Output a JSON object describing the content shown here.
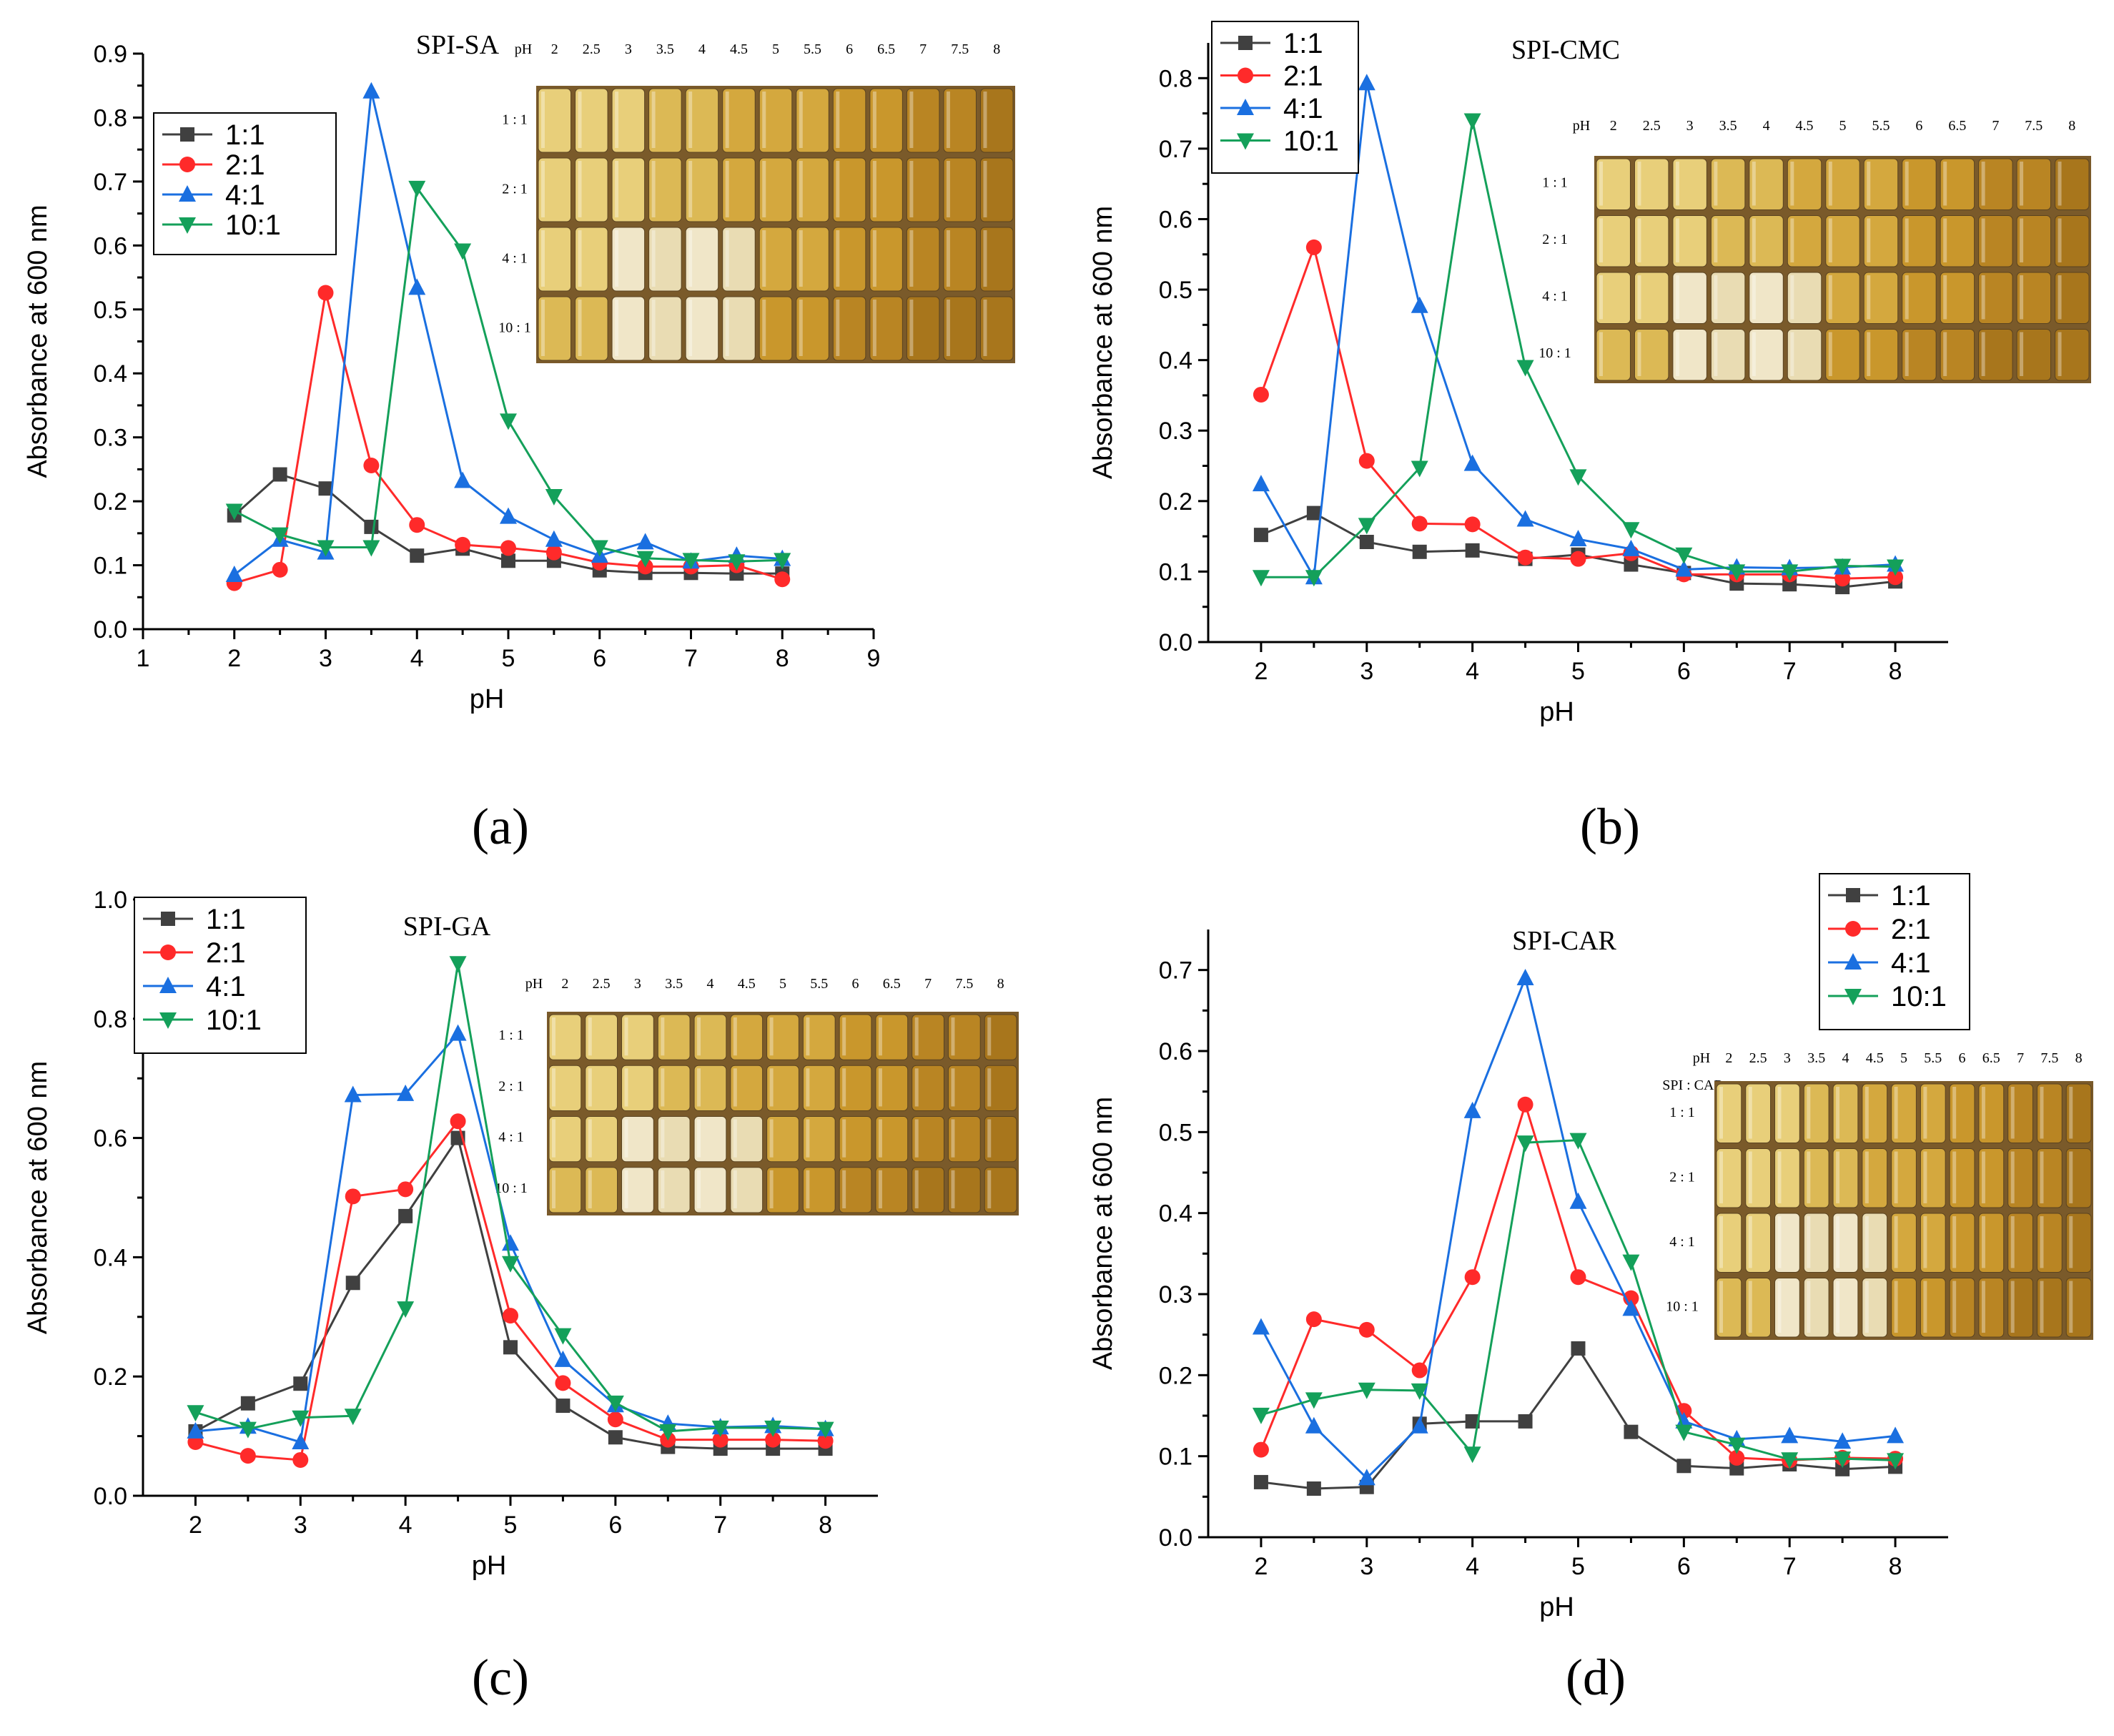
{
  "series_colors": {
    "1:1": "#404040",
    "2:1": "#ff2a2a",
    "4:1": "#1a6fe0",
    "10:1": "#14a05a"
  },
  "vial_palette": [
    "#e8cf7a",
    "#dcb955",
    "#d4a83e",
    "#c9972c",
    "#b98523",
    "#a8761c",
    "#f0e6c8",
    "#e9dcb3"
  ],
  "chart_data": [
    {
      "panel": "(a)",
      "type": "line",
      "title": "SPI-SA",
      "xlabel": "pH",
      "ylabel": "Absorbance at 600 nm",
      "xlim": [
        1,
        9
      ],
      "ylim": [
        0.0,
        0.9
      ],
      "xticks": [
        "1",
        "2",
        "3",
        "4",
        "5",
        "6",
        "7",
        "8",
        "9"
      ],
      "yticks": [
        "0.0",
        "0.1",
        "0.2",
        "0.3",
        "0.4",
        "0.5",
        "0.6",
        "0.7",
        "0.8",
        "0.9"
      ],
      "x": [
        2,
        2.5,
        3,
        3.5,
        4,
        4.5,
        5,
        5.5,
        6,
        6.5,
        7,
        7.5,
        8
      ],
      "legend_position": "top-left",
      "series": [
        {
          "name": "1:1",
          "values": [
            0.178,
            0.242,
            0.22,
            0.16,
            0.115,
            0.126,
            0.107,
            0.107,
            0.092,
            0.088,
            0.088,
            0.087,
            0.087
          ]
        },
        {
          "name": "2:1",
          "values": [
            0.072,
            0.093,
            0.526,
            0.256,
            0.163,
            0.132,
            0.127,
            0.12,
            0.104,
            0.098,
            0.098,
            0.1,
            0.078
          ]
        },
        {
          "name": "4:1",
          "values": [
            0.085,
            0.14,
            0.12,
            0.841,
            0.534,
            0.232,
            0.176,
            0.14,
            0.115,
            0.136,
            0.106,
            0.115,
            0.11
          ]
        },
        {
          "name": "10:1",
          "values": [
            0.185,
            0.148,
            0.128,
            0.128,
            0.69,
            0.592,
            0.326,
            0.208,
            0.128,
            0.111,
            0.108,
            0.106,
            0.108
          ]
        }
      ],
      "inset": {
        "columns": [
          "pH",
          "2",
          "2.5",
          "3",
          "3.5",
          "4",
          "4.5",
          "5",
          "5.5",
          "6",
          "6.5",
          "7",
          "7.5",
          "8"
        ],
        "rows": [
          "1 : 1",
          "2 : 1",
          "4 : 1",
          "10 : 1"
        ]
      }
    },
    {
      "panel": "(b)",
      "type": "line",
      "title": "SPI-CMC",
      "xlabel": "pH",
      "ylabel": "Absorbance at 600 nm",
      "xlim": [
        1.5,
        8.5
      ],
      "ylim": [
        0.0,
        0.85
      ],
      "xticks": [
        "2",
        "3",
        "4",
        "5",
        "6",
        "7",
        "8"
      ],
      "yticks": [
        "0.0",
        "0.1",
        "0.2",
        "0.3",
        "0.4",
        "0.5",
        "0.6",
        "0.7",
        "0.8"
      ],
      "x": [
        2,
        2.5,
        3,
        3.5,
        4,
        4.5,
        5,
        5.5,
        6,
        6.5,
        7,
        7.5,
        8
      ],
      "legend_position": "top-left",
      "series": [
        {
          "name": "1:1",
          "values": [
            0.152,
            0.183,
            0.142,
            0.128,
            0.13,
            0.118,
            0.124,
            0.11,
            0.098,
            0.083,
            0.082,
            0.078,
            0.086
          ]
        },
        {
          "name": "2:1",
          "values": [
            0.351,
            0.56,
            0.257,
            0.168,
            0.167,
            0.12,
            0.118,
            0.126,
            0.096,
            0.096,
            0.096,
            0.09,
            0.092
          ]
        },
        {
          "name": "4:1",
          "values": [
            0.224,
            0.092,
            0.793,
            0.477,
            0.253,
            0.174,
            0.146,
            0.132,
            0.103,
            0.106,
            0.105,
            0.106,
            0.11
          ]
        },
        {
          "name": "10:1",
          "values": [
            0.092,
            0.092,
            0.166,
            0.247,
            0.74,
            0.39,
            0.235,
            0.16,
            0.124,
            0.1,
            0.1,
            0.108,
            0.107
          ]
        }
      ],
      "inset": {
        "columns": [
          "pH",
          "2",
          "2.5",
          "3",
          "3.5",
          "4",
          "4.5",
          "5",
          "5.5",
          "6",
          "6.5",
          "7",
          "7.5",
          "8"
        ],
        "rows": [
          "1 : 1",
          "2 : 1",
          "4 : 1",
          "10 : 1"
        ]
      }
    },
    {
      "panel": "(c)",
      "type": "line",
      "title": "SPI-GA",
      "xlabel": "pH",
      "ylabel": "Absorbance at 600 nm",
      "xlim": [
        1.5,
        8.5
      ],
      "ylim": [
        0.0,
        1.0
      ],
      "xticks": [
        "2",
        "3",
        "4",
        "5",
        "6",
        "7",
        "8"
      ],
      "yticks": [
        "0.0",
        "0.2",
        "0.4",
        "0.6",
        "0.8",
        "1.0"
      ],
      "x": [
        2,
        2.5,
        3,
        3.5,
        4,
        4.5,
        5,
        5.5,
        6,
        6.5,
        7,
        7.5,
        8
      ],
      "legend_position": "top-left",
      "series": [
        {
          "name": "1:1",
          "values": [
            0.108,
            0.155,
            0.188,
            0.357,
            0.469,
            0.6,
            0.249,
            0.151,
            0.098,
            0.082,
            0.079,
            0.079,
            0.079
          ]
        },
        {
          "name": "2:1",
          "values": [
            0.09,
            0.067,
            0.06,
            0.502,
            0.514,
            0.628,
            0.302,
            0.189,
            0.128,
            0.094,
            0.094,
            0.094,
            0.092
          ]
        },
        {
          "name": "4:1",
          "values": [
            0.108,
            0.116,
            0.09,
            0.672,
            0.674,
            0.775,
            0.423,
            0.228,
            0.152,
            0.121,
            0.115,
            0.117,
            0.112
          ]
        },
        {
          "name": "10:1",
          "values": [
            0.14,
            0.112,
            0.131,
            0.134,
            0.314,
            0.893,
            0.39,
            0.269,
            0.156,
            0.108,
            0.114,
            0.114,
            0.112
          ]
        }
      ],
      "inset": {
        "columns": [
          "pH",
          "2",
          "2.5",
          "3",
          "3.5",
          "4",
          "4.5",
          "5",
          "5.5",
          "6",
          "6.5",
          "7",
          "7.5",
          "8"
        ],
        "rows": [
          "1 : 1",
          "2 : 1",
          "4 : 1",
          "10 : 1"
        ]
      }
    },
    {
      "panel": "(d)",
      "type": "line",
      "title": "SPI-CAR",
      "xlabel": "pH",
      "ylabel": "Absorbance at 600 nm",
      "xlim": [
        1.5,
        8.5
      ],
      "ylim": [
        0.0,
        0.75
      ],
      "xticks": [
        "2",
        "3",
        "4",
        "5",
        "6",
        "7",
        "8"
      ],
      "yticks": [
        "0.0",
        "0.1",
        "0.2",
        "0.3",
        "0.4",
        "0.5",
        "0.6",
        "0.7"
      ],
      "x": [
        2,
        2.5,
        3,
        3.5,
        4,
        4.5,
        5,
        5.5,
        6,
        6.5,
        7,
        7.5,
        8
      ],
      "legend_position": "top-right",
      "series": [
        {
          "name": "1:1",
          "values": [
            0.068,
            0.06,
            0.062,
            0.14,
            0.143,
            0.143,
            0.233,
            0.13,
            0.088,
            0.085,
            0.09,
            0.084,
            0.087
          ]
        },
        {
          "name": "2:1",
          "values": [
            0.108,
            0.269,
            0.256,
            0.206,
            0.321,
            0.534,
            0.321,
            0.295,
            0.156,
            0.098,
            0.095,
            0.098,
            0.097
          ]
        },
        {
          "name": "4:1",
          "values": [
            0.259,
            0.137,
            0.073,
            0.137,
            0.526,
            0.69,
            0.414,
            0.282,
            0.143,
            0.121,
            0.125,
            0.118,
            0.125
          ]
        },
        {
          "name": "10:1",
          "values": [
            0.151,
            0.17,
            0.182,
            0.181,
            0.103,
            0.487,
            0.49,
            0.34,
            0.13,
            0.114,
            0.096,
            0.097,
            0.095
          ]
        }
      ],
      "inset": {
        "columns": [
          "pH",
          "2",
          "2.5",
          "3",
          "3.5",
          "4",
          "4.5",
          "5",
          "5.5",
          "6",
          "6.5",
          "7",
          "7.5",
          "8"
        ],
        "header": "SPI : CAR",
        "rows": [
          "1 : 1",
          "2 : 1",
          "4 : 1",
          "10 : 1"
        ]
      }
    }
  ]
}
